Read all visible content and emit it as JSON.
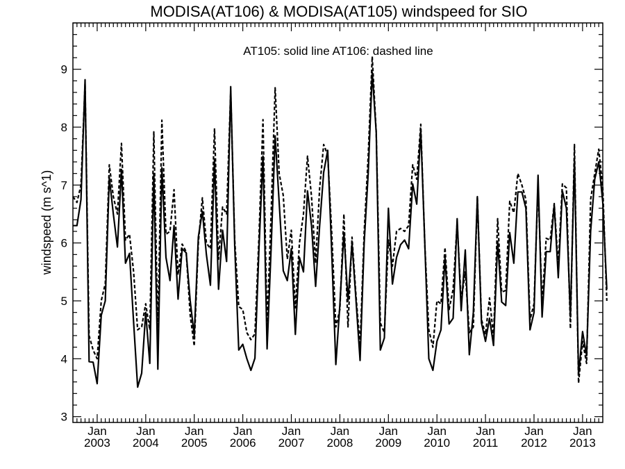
{
  "chart_data": {
    "type": "line",
    "title": "MODISA(AT106) & MODISA(AT105)  windspeed for SIO",
    "annotation": "AT105: solid line   AT106: dashed line",
    "ylabel": "windspeed (m s^1)",
    "xlabel": "",
    "ylim": [
      2.9,
      9.8
    ],
    "yticks": [
      3,
      4,
      5,
      6,
      7,
      8,
      9
    ],
    "x_range": [
      "2002-07",
      "2013-06"
    ],
    "x_ticks": [
      {
        "month": "Jan",
        "year": "2003"
      },
      {
        "month": "Jan",
        "year": "2004"
      },
      {
        "month": "Jan",
        "year": "2005"
      },
      {
        "month": "Jan",
        "year": "2006"
      },
      {
        "month": "Jan",
        "year": "2007"
      },
      {
        "month": "Jan",
        "year": "2008"
      },
      {
        "month": "Jan",
        "year": "2009"
      },
      {
        "month": "Jan",
        "year": "2010"
      },
      {
        "month": "Jan",
        "year": "2011"
      },
      {
        "month": "Jan",
        "year": "2012"
      },
      {
        "month": "Jan",
        "year": "2013"
      }
    ],
    "grid": false,
    "series": [
      {
        "name": "AT105",
        "style": "solid",
        "color": "#000000",
        "start": "2002-07",
        "values": [
          6.3,
          6.3,
          6.75,
          8.82,
          3.95,
          3.94,
          3.57,
          4.75,
          5.0,
          7.13,
          6.5,
          5.93,
          7.27,
          5.65,
          5.82,
          4.63,
          3.51,
          3.75,
          4.8,
          3.92,
          7.2,
          3.82,
          7.3,
          5.75,
          5.35,
          6.3,
          5.03,
          5.9,
          5.83,
          5.0,
          4.4,
          6.1,
          6.55,
          5.8,
          5.27,
          7.45,
          5.2,
          6.22,
          5.68,
          8.7,
          5.95,
          4.15,
          4.25,
          4.0,
          3.8,
          4.01,
          5.9,
          7.5,
          4.17,
          5.9,
          7.85,
          6.7,
          5.52,
          5.35,
          5.9,
          4.42,
          5.75,
          5.5,
          6.9,
          6.3,
          5.25,
          6.3,
          7.22,
          7.6,
          5.8,
          3.9,
          4.93,
          6.18,
          5.0,
          6.0,
          5.0,
          3.97,
          6.0,
          7.2,
          8.95,
          7.9,
          4.15,
          4.36,
          6.6,
          5.29,
          5.75,
          5.97,
          6.05,
          5.9,
          7.02,
          6.67,
          7.95,
          6.0,
          4.0,
          3.8,
          4.3,
          4.5,
          5.75,
          4.6,
          4.7,
          6.42,
          4.83,
          5.88,
          4.07,
          4.8,
          6.8,
          4.62,
          4.3,
          4.7,
          4.23,
          6.03,
          4.98,
          4.92,
          6.18,
          5.65,
          6.88,
          6.88,
          6.6,
          4.5,
          4.8,
          7.17,
          4.72,
          5.85,
          5.85,
          6.66,
          5.4,
          6.9,
          6.6,
          4.72,
          7.45,
          3.72,
          4.47,
          4.05,
          6.2,
          7.1,
          7.4,
          6.7,
          5.2
        ]
      },
      {
        "name": "AT106",
        "style": "dashed",
        "color": "#000000",
        "start": "2002-07",
        "values": [
          6.8,
          6.7,
          7.0,
          8.75,
          4.4,
          4.15,
          4.0,
          5.0,
          5.3,
          7.35,
          6.8,
          6.5,
          7.72,
          6.05,
          6.15,
          5.5,
          4.5,
          4.55,
          4.95,
          4.5,
          7.92,
          4.48,
          8.12,
          6.15,
          6.2,
          6.92,
          5.45,
          5.98,
          5.85,
          4.75,
          4.22,
          6.0,
          6.78,
          6.0,
          5.9,
          7.98,
          5.72,
          6.62,
          6.5,
          8.62,
          6.05,
          4.9,
          4.85,
          4.45,
          4.33,
          4.43,
          6.1,
          8.13,
          4.58,
          6.5,
          8.68,
          7.2,
          6.82,
          5.72,
          6.22,
          4.88,
          6.0,
          6.5,
          7.5,
          6.8,
          5.65,
          6.95,
          7.7,
          7.52,
          6.15,
          4.55,
          4.85,
          6.5,
          4.55,
          6.1,
          5.08,
          4.22,
          6.18,
          7.5,
          9.22,
          7.9,
          4.62,
          4.45,
          6.05,
          5.6,
          6.2,
          6.25,
          6.2,
          6.3,
          7.35,
          7.1,
          8.05,
          5.98,
          4.5,
          4.2,
          5.0,
          4.95,
          5.92,
          4.85,
          5.2,
          6.35,
          5.0,
          5.5,
          4.45,
          4.55,
          6.8,
          4.68,
          4.42,
          5.05,
          4.38,
          6.42,
          5.15,
          5.18,
          6.72,
          6.52,
          7.2,
          7.0,
          6.75,
          4.67,
          4.95,
          7.0,
          4.95,
          6.08,
          6.05,
          6.68,
          5.6,
          7.02,
          6.95,
          4.52,
          7.7,
          3.58,
          4.3,
          3.92,
          6.75,
          7.2,
          7.62,
          6.95,
          5.0
        ]
      }
    ]
  }
}
